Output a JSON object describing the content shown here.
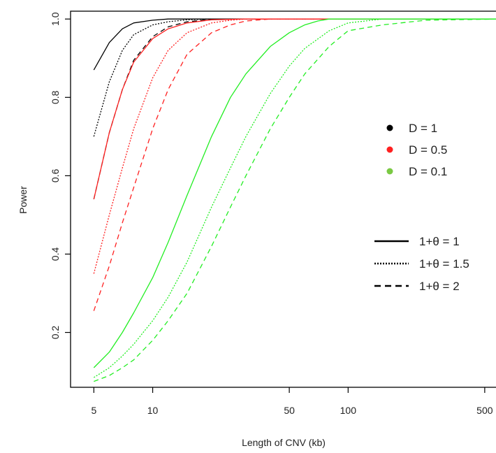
{
  "chart_data": {
    "type": "line",
    "title": "",
    "xlabel": "Length of CNV (kb)",
    "ylabel": "Power",
    "x_scale": "log",
    "xlim": [
      3.8,
      620
    ],
    "ylim": [
      0.06,
      1.02
    ],
    "x_ticks": [
      5,
      10,
      50,
      100,
      500
    ],
    "x_tick_labels": [
      "5",
      "10",
      "50",
      "100",
      "500"
    ],
    "y_ticks": [
      0.2,
      0.4,
      0.6,
      0.8,
      1.0
    ],
    "y_tick_labels": [
      "0.2",
      "0.4",
      "0.6",
      "0.8",
      "1.0"
    ],
    "grid": false,
    "legend_D": {
      "placement": "right-middle",
      "entries": [
        {
          "label": "D = 1",
          "color": "#000000"
        },
        {
          "label": "D = 0.5",
          "color": "#ff2020"
        },
        {
          "label": "D = 0.1",
          "color": "#7ac943"
        }
      ]
    },
    "legend_theta": {
      "placement": "right-lower",
      "entries": [
        {
          "label": "1+θ = 1",
          "linestyle": "solid"
        },
        {
          "label": "1+θ = 1.5",
          "linestyle": "dotted"
        },
        {
          "label": "1+θ = 2",
          "linestyle": "dashed"
        }
      ]
    },
    "series": [
      {
        "D": "1",
        "theta": "1",
        "color": "#000000",
        "linestyle": "solid",
        "x": [
          5,
          6,
          7,
          8,
          10,
          12,
          15,
          20,
          30,
          50,
          100,
          200,
          600
        ],
        "y": [
          0.87,
          0.94,
          0.975,
          0.99,
          0.997,
          1.0,
          1.0,
          1.0,
          1.0,
          1.0,
          1.0,
          1.0,
          1.0
        ]
      },
      {
        "D": "1",
        "theta": "1.5",
        "color": "#000000",
        "linestyle": "dotted",
        "x": [
          5,
          6,
          7,
          8,
          10,
          12,
          15,
          20,
          30,
          50,
          100,
          200,
          600
        ],
        "y": [
          0.7,
          0.84,
          0.92,
          0.96,
          0.985,
          0.993,
          0.998,
          1.0,
          1.0,
          1.0,
          1.0,
          1.0,
          1.0
        ]
      },
      {
        "D": "1",
        "theta": "2",
        "color": "#000000",
        "linestyle": "dashed",
        "x": [
          5,
          6,
          7,
          8,
          10,
          12,
          15,
          20,
          30,
          50,
          100,
          200,
          600
        ],
        "y": [
          0.54,
          0.71,
          0.82,
          0.895,
          0.955,
          0.98,
          0.993,
          0.999,
          1.0,
          1.0,
          1.0,
          1.0,
          1.0
        ]
      },
      {
        "D": "0.5",
        "theta": "1",
        "color": "#ff2020",
        "linestyle": "solid",
        "x": [
          5,
          6,
          7,
          8,
          10,
          12,
          15,
          20,
          30,
          50,
          100,
          200,
          600
        ],
        "y": [
          0.54,
          0.71,
          0.82,
          0.89,
          0.95,
          0.975,
          0.99,
          0.998,
          1.0,
          1.0,
          1.0,
          1.0,
          1.0
        ]
      },
      {
        "D": "0.5",
        "theta": "1.5",
        "color": "#ff2020",
        "linestyle": "dotted",
        "x": [
          5,
          6,
          7,
          8,
          10,
          12,
          15,
          20,
          25,
          30,
          50,
          100,
          600
        ],
        "y": [
          0.35,
          0.5,
          0.62,
          0.72,
          0.85,
          0.92,
          0.965,
          0.99,
          0.997,
          1.0,
          1.0,
          1.0,
          1.0
        ]
      },
      {
        "D": "0.5",
        "theta": "2",
        "color": "#ff2020",
        "linestyle": "dashed",
        "x": [
          5,
          6,
          7,
          8,
          10,
          12,
          15,
          20,
          25,
          30,
          40,
          50,
          100,
          600
        ],
        "y": [
          0.255,
          0.37,
          0.48,
          0.57,
          0.72,
          0.82,
          0.91,
          0.965,
          0.985,
          0.995,
          1.0,
          1.0,
          1.0,
          1.0
        ]
      },
      {
        "D": "0.1",
        "theta": "1",
        "color": "#22ee22",
        "linestyle": "solid",
        "x": [
          5,
          6,
          7,
          8,
          10,
          12,
          15,
          20,
          25,
          30,
          40,
          50,
          60,
          70,
          80,
          100,
          600
        ],
        "y": [
          0.11,
          0.15,
          0.2,
          0.25,
          0.34,
          0.43,
          0.55,
          0.7,
          0.8,
          0.86,
          0.93,
          0.965,
          0.985,
          0.995,
          1.0,
          1.0,
          1.0
        ]
      },
      {
        "D": "0.1",
        "theta": "1.5",
        "color": "#22ee22",
        "linestyle": "dotted",
        "x": [
          5,
          6,
          7,
          8,
          10,
          12,
          15,
          20,
          25,
          30,
          40,
          50,
          60,
          80,
          100,
          150,
          600
        ],
        "y": [
          0.085,
          0.11,
          0.14,
          0.17,
          0.23,
          0.29,
          0.38,
          0.52,
          0.62,
          0.7,
          0.81,
          0.88,
          0.925,
          0.97,
          0.99,
          1.0,
          1.0
        ]
      },
      {
        "D": "0.1",
        "theta": "2",
        "color": "#22ee22",
        "linestyle": "dashed",
        "x": [
          5,
          6,
          7,
          8,
          10,
          12,
          15,
          20,
          25,
          30,
          40,
          50,
          60,
          80,
          100,
          150,
          250,
          600
        ],
        "y": [
          0.075,
          0.09,
          0.11,
          0.13,
          0.18,
          0.23,
          0.3,
          0.42,
          0.52,
          0.6,
          0.72,
          0.8,
          0.86,
          0.93,
          0.97,
          0.985,
          0.997,
          1.0
        ]
      }
    ]
  }
}
